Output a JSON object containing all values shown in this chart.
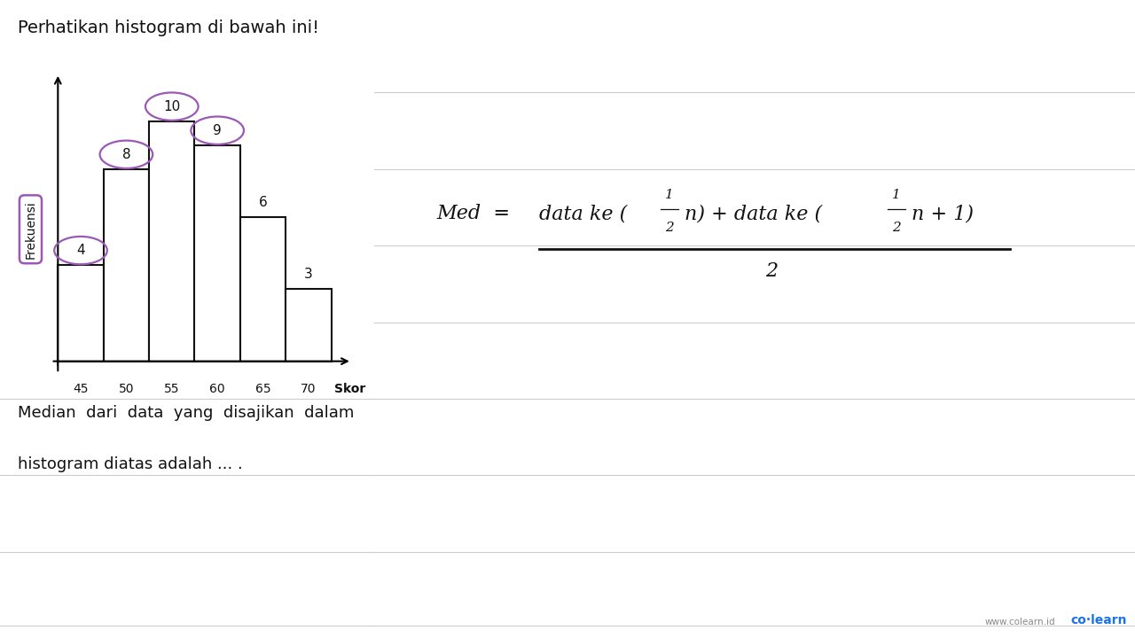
{
  "title": "Perhatikan histogram di bawah ini!",
  "xlabel": "Skor",
  "ylabel": "Frekuensi",
  "categories": [
    45,
    50,
    55,
    60,
    65,
    70
  ],
  "frequencies": [
    4,
    8,
    10,
    9,
    6,
    3
  ],
  "bar_color": "#ffffff",
  "bar_edge_color": "#111111",
  "background_color": "#ffffff",
  "question_text1": "Median  dari  data  yang  disajikan  dalam",
  "question_text2": "histogram diatas adalah ... .",
  "circled_color": "#9b59b6",
  "line_color": "#cccccc",
  "text_color": "#111111",
  "colearn_blue": "#1a73e8"
}
